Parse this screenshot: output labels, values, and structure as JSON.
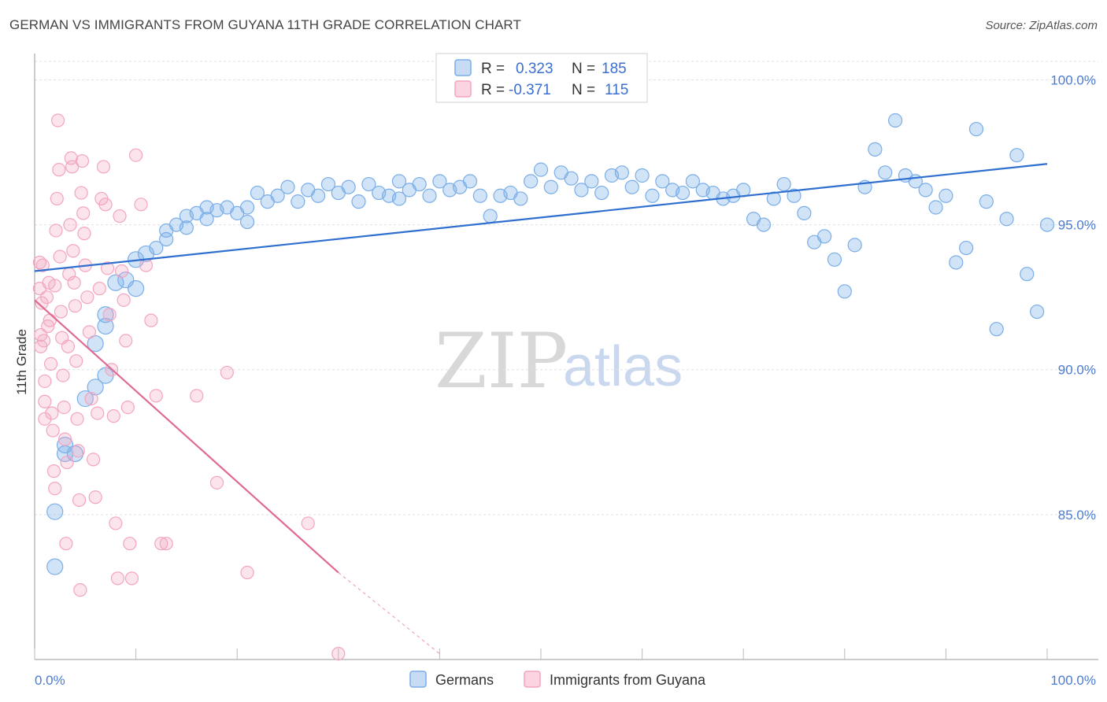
{
  "header": {
    "title": "GERMAN VS IMMIGRANTS FROM GUYANA 11TH GRADE CORRELATION CHART",
    "source": "Source: ZipAtlas.com"
  },
  "watermark": {
    "zip": "ZIP",
    "atlas": "atlas"
  },
  "legend_top": [
    {
      "r_label": "R =",
      "r_value": "0.323",
      "n_label": "N =",
      "n_value": "185",
      "color": "#7aaee8"
    },
    {
      "r_label": "R =",
      "r_value": "-0.371",
      "n_label": "N =",
      "n_value": "115",
      "color": "#f3a5bf"
    }
  ],
  "legend_bottom": [
    {
      "label": "Germans",
      "color": "#7aaee8"
    },
    {
      "label": "Immigrants from Guyana",
      "color": "#f3a5bf"
    }
  ],
  "chart_data": {
    "type": "scatter",
    "title": "GERMAN VS IMMIGRANTS FROM GUYANA 11TH GRADE CORRELATION CHART",
    "xlabel": "",
    "ylabel": "11th Grade",
    "xlim": [
      0,
      100
    ],
    "ylim": [
      80,
      100.8
    ],
    "x_tick_labels": [
      "0.0%",
      "100.0%"
    ],
    "y_ticks": [
      85,
      90,
      95,
      100
    ],
    "y_tick_labels": [
      "85.0%",
      "90.0%",
      "95.0%",
      "100.0%"
    ],
    "grid": true,
    "legend_position": "top-center",
    "series": [
      {
        "name": "Germans",
        "color": "#7aaee8",
        "line_color": "#2f6fcf",
        "r": 0.323,
        "n": 185,
        "trend": {
          "x": [
            0,
            100
          ],
          "y": [
            93.4,
            97.1
          ]
        },
        "points": [
          [
            2,
            83.2
          ],
          [
            2,
            85.1
          ],
          [
            3,
            87.1
          ],
          [
            3,
            87.4
          ],
          [
            4,
            87.1
          ],
          [
            5,
            89.0
          ],
          [
            6,
            89.4
          ],
          [
            7,
            89.8
          ],
          [
            6,
            90.9
          ],
          [
            7,
            91.5
          ],
          [
            7,
            91.9
          ],
          [
            8,
            93.0
          ],
          [
            9,
            93.1
          ],
          [
            10,
            92.8
          ],
          [
            10,
            93.8
          ],
          [
            11,
            94.0
          ],
          [
            12,
            94.2
          ],
          [
            13,
            94.5
          ],
          [
            13,
            94.8
          ],
          [
            14,
            95.0
          ],
          [
            15,
            94.9
          ],
          [
            15,
            95.3
          ],
          [
            16,
            95.4
          ],
          [
            17,
            95.2
          ],
          [
            17,
            95.6
          ],
          [
            18,
            95.5
          ],
          [
            19,
            95.6
          ],
          [
            20,
            95.4
          ],
          [
            21,
            95.6
          ],
          [
            21,
            95.1
          ],
          [
            22,
            96.1
          ],
          [
            23,
            95.8
          ],
          [
            24,
            96.0
          ],
          [
            25,
            96.3
          ],
          [
            26,
            95.8
          ],
          [
            27,
            96.2
          ],
          [
            28,
            96.0
          ],
          [
            29,
            96.4
          ],
          [
            30,
            96.1
          ],
          [
            31,
            96.3
          ],
          [
            32,
            95.8
          ],
          [
            33,
            96.4
          ],
          [
            34,
            96.1
          ],
          [
            35,
            96.0
          ],
          [
            36,
            95.9
          ],
          [
            36,
            96.5
          ],
          [
            37,
            96.2
          ],
          [
            38,
            96.4
          ],
          [
            39,
            96.0
          ],
          [
            40,
            96.5
          ],
          [
            41,
            96.2
          ],
          [
            42,
            96.3
          ],
          [
            43,
            96.5
          ],
          [
            44,
            96.0
          ],
          [
            45,
            95.3
          ],
          [
            46,
            96.0
          ],
          [
            47,
            96.1
          ],
          [
            48,
            95.9
          ],
          [
            49,
            96.5
          ],
          [
            50,
            96.9
          ],
          [
            51,
            96.3
          ],
          [
            52,
            96.8
          ],
          [
            53,
            96.6
          ],
          [
            54,
            96.2
          ],
          [
            55,
            96.5
          ],
          [
            56,
            96.1
          ],
          [
            57,
            96.7
          ],
          [
            58,
            96.8
          ],
          [
            59,
            96.3
          ],
          [
            60,
            96.7
          ],
          [
            61,
            96.0
          ],
          [
            62,
            96.5
          ],
          [
            63,
            96.2
          ],
          [
            64,
            96.1
          ],
          [
            65,
            96.5
          ],
          [
            66,
            96.2
          ],
          [
            67,
            96.1
          ],
          [
            68,
            95.9
          ],
          [
            69,
            96.0
          ],
          [
            70,
            96.2
          ],
          [
            71,
            95.2
          ],
          [
            72,
            95.0
          ],
          [
            73,
            95.9
          ],
          [
            74,
            96.4
          ],
          [
            75,
            96.0
          ],
          [
            76,
            95.4
          ],
          [
            77,
            94.4
          ],
          [
            78,
            94.6
          ],
          [
            79,
            93.8
          ],
          [
            80,
            92.7
          ],
          [
            81,
            94.3
          ],
          [
            82,
            96.3
          ],
          [
            83,
            97.6
          ],
          [
            84,
            96.8
          ],
          [
            85,
            98.6
          ],
          [
            86,
            96.7
          ],
          [
            87,
            96.5
          ],
          [
            88,
            96.2
          ],
          [
            89,
            95.6
          ],
          [
            90,
            96.0
          ],
          [
            91,
            93.7
          ],
          [
            92,
            94.2
          ],
          [
            93,
            98.3
          ],
          [
            94,
            95.8
          ],
          [
            95,
            91.4
          ],
          [
            96,
            95.2
          ],
          [
            97,
            97.4
          ],
          [
            98,
            93.3
          ],
          [
            99,
            92.0
          ],
          [
            100,
            95.0
          ]
        ]
      },
      {
        "name": "Immigrants from Guyana",
        "color": "#f3a5bf",
        "line_color": "#e06a93",
        "r": -0.371,
        "n": 115,
        "trend": {
          "x": [
            0,
            30
          ],
          "y": [
            92.4,
            83.0
          ]
        },
        "trend_dashed": {
          "x": [
            30,
            40
          ],
          "y": [
            83.0,
            80.2
          ]
        },
        "points": [
          [
            0.5,
            93.7
          ],
          [
            0.5,
            92.8
          ],
          [
            0.6,
            91.2
          ],
          [
            0.6,
            90.8
          ],
          [
            0.7,
            92.3
          ],
          [
            0.8,
            93.6
          ],
          [
            0.9,
            91.0
          ],
          [
            1,
            89.6
          ],
          [
            1,
            88.9
          ],
          [
            1,
            88.3
          ],
          [
            1.2,
            92.5
          ],
          [
            1.3,
            91.5
          ],
          [
            1.4,
            93.0
          ],
          [
            1.5,
            91.7
          ],
          [
            1.6,
            90.2
          ],
          [
            1.7,
            88.5
          ],
          [
            1.8,
            87.9
          ],
          [
            1.9,
            86.5
          ],
          [
            2,
            85.9
          ],
          [
            2,
            92.9
          ],
          [
            2.1,
            94.8
          ],
          [
            2.2,
            95.9
          ],
          [
            2.3,
            98.6
          ],
          [
            2.4,
            96.9
          ],
          [
            2.5,
            93.9
          ],
          [
            2.6,
            92.0
          ],
          [
            2.7,
            91.1
          ],
          [
            2.8,
            89.8
          ],
          [
            2.9,
            88.7
          ],
          [
            3,
            87.6
          ],
          [
            3.1,
            84.0
          ],
          [
            3.2,
            86.8
          ],
          [
            3.3,
            90.8
          ],
          [
            3.4,
            93.3
          ],
          [
            3.5,
            95.0
          ],
          [
            3.6,
            97.3
          ],
          [
            3.7,
            97.0
          ],
          [
            3.8,
            94.1
          ],
          [
            3.9,
            93.0
          ],
          [
            4,
            92.2
          ],
          [
            4.1,
            90.3
          ],
          [
            4.2,
            88.3
          ],
          [
            4.3,
            87.2
          ],
          [
            4.4,
            85.5
          ],
          [
            4.5,
            82.4
          ],
          [
            4.6,
            96.1
          ],
          [
            4.7,
            97.2
          ],
          [
            4.8,
            95.4
          ],
          [
            4.9,
            94.7
          ],
          [
            5,
            93.6
          ],
          [
            5.2,
            92.5
          ],
          [
            5.4,
            91.3
          ],
          [
            5.6,
            89.0
          ],
          [
            5.8,
            86.9
          ],
          [
            6,
            85.6
          ],
          [
            6.2,
            88.5
          ],
          [
            6.4,
            92.8
          ],
          [
            6.6,
            95.9
          ],
          [
            6.8,
            97.0
          ],
          [
            7,
            95.7
          ],
          [
            7.2,
            93.5
          ],
          [
            7.4,
            91.9
          ],
          [
            7.6,
            90.0
          ],
          [
            7.8,
            88.4
          ],
          [
            8,
            84.7
          ],
          [
            8.2,
            82.8
          ],
          [
            8.4,
            95.3
          ],
          [
            8.6,
            93.4
          ],
          [
            8.8,
            92.4
          ],
          [
            9,
            91.0
          ],
          [
            9.2,
            88.7
          ],
          [
            9.4,
            84.0
          ],
          [
            9.6,
            82.8
          ],
          [
            10,
            97.4
          ],
          [
            10.5,
            95.7
          ],
          [
            11,
            93.6
          ],
          [
            11.5,
            91.7
          ],
          [
            12,
            89.1
          ],
          [
            12.5,
            84.0
          ],
          [
            13,
            84.0
          ],
          [
            16,
            89.1
          ],
          [
            18,
            86.1
          ],
          [
            19,
            89.9
          ],
          [
            21,
            83.0
          ],
          [
            27,
            84.7
          ],
          [
            30,
            80.2
          ]
        ]
      }
    ]
  }
}
